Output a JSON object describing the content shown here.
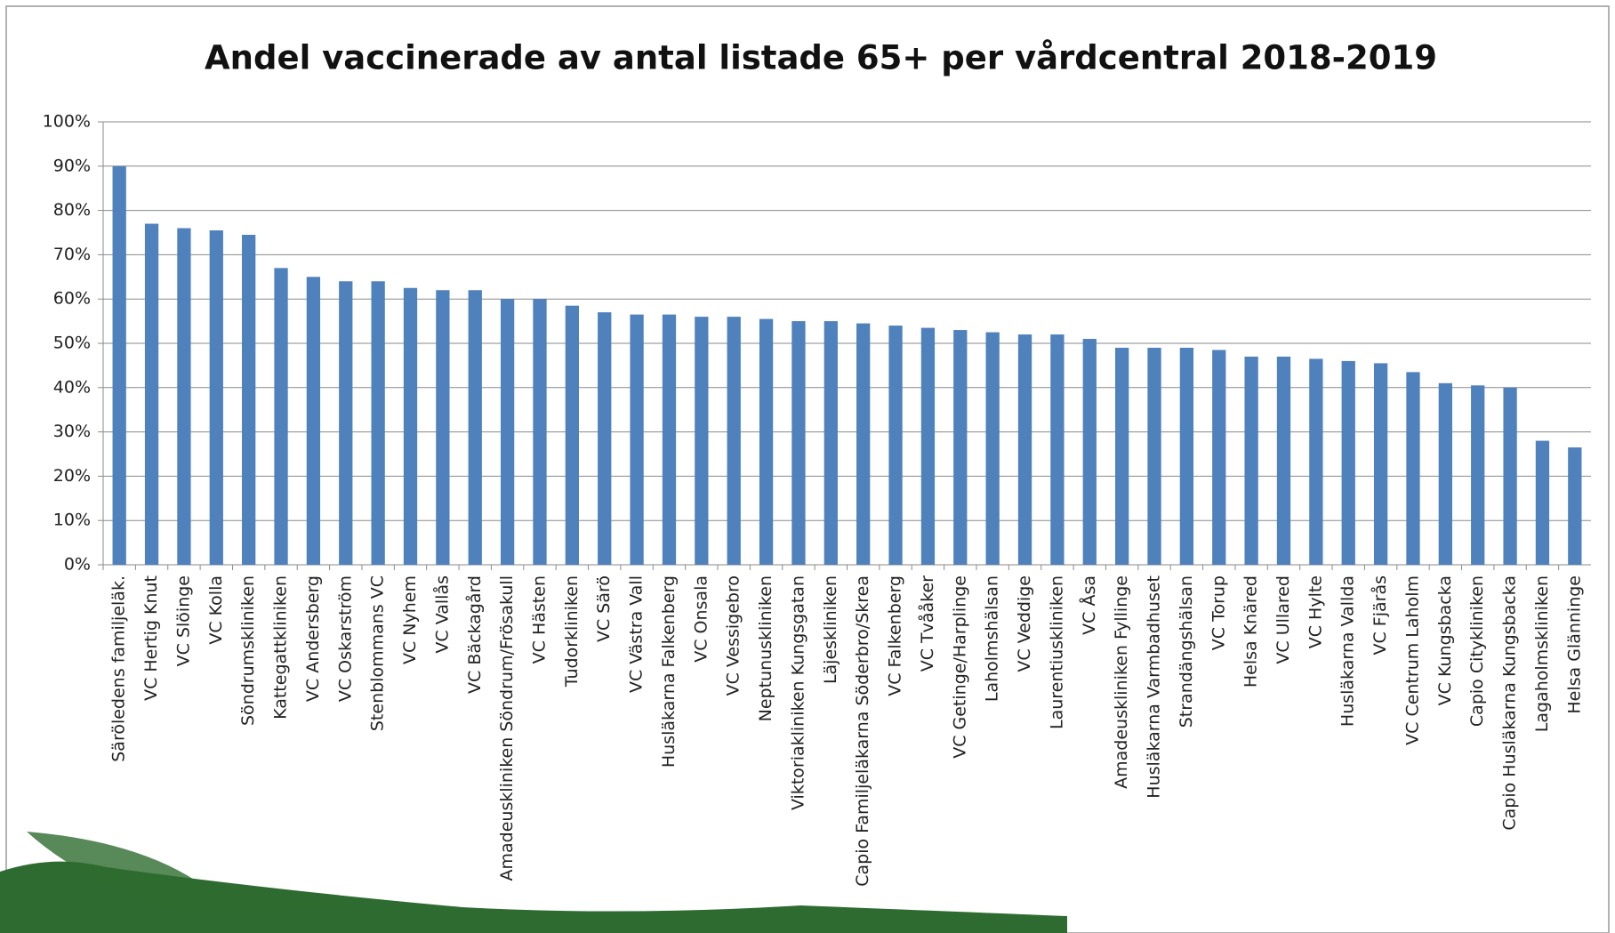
{
  "chart_data": {
    "type": "bar",
    "title": "Andel vaccinerade av antal listade 65+ per vårdcentral 2018-2019",
    "categories": [
      "Säröledens familjeläk.",
      "VC Hertig Knut",
      "VC Slöinge",
      "VC Kolla",
      "Söndrumskliniken",
      "Kattegattkliniken",
      "VC Andersberg",
      "VC Oskarström",
      "Stenblommans VC",
      "VC Nyhem",
      "VC Vallås",
      "VC Bäckagård",
      "Amadeuskliniken Söndrum/Frösakull",
      "VC Hästen",
      "Tudorkliniken",
      "VC Särö",
      "VC Västra Vall",
      "Husläkarna Falkenberg",
      "VC Onsala",
      "VC Vessigebro",
      "Neptunuskliniken",
      "Viktoriakliniken Kungsgatan",
      "Läjeskliniken",
      "Capio Familjeläkarna Söderbro/Skrea",
      "VC Falkenberg",
      "VC Tvååker",
      "VC Getinge/Harplinge",
      "Laholmshälsan",
      "VC Veddige",
      "Laurentiuskliniken",
      "VC Åsa",
      "Amadeuskliniken Fyllinge",
      "Husläkarna Varmbadhuset",
      "Strandängshälsan",
      "VC Torup",
      "Helsa Knäred",
      "VC Ullared",
      "VC Hylte",
      "Husläkarna Vallda",
      "VC Fjärås",
      "VC Centrum Laholm",
      "VC Kungsbacka",
      "Capio Citykliniken",
      "Capio Husläkarna Kungsbacka",
      "Lagaholmskliniken",
      "Helsa Glänninge"
    ],
    "values": [
      90,
      77,
      76,
      75.5,
      74.5,
      67,
      65,
      64,
      64,
      62.5,
      62,
      62,
      60,
      60,
      58.5,
      57,
      56.5,
      56.5,
      56,
      56,
      55.5,
      55,
      55,
      54.5,
      54,
      53.5,
      53,
      52.5,
      52,
      52,
      51,
      49,
      49,
      49,
      48.5,
      47,
      47,
      46.5,
      46,
      45.5,
      43.5,
      41,
      40.5,
      40,
      28,
      26.5
    ],
    "color": "#4f81bd",
    "ylim": [
      0,
      100
    ],
    "yticks": [
      {
        "value": 0,
        "label": "0%"
      },
      {
        "value": 10,
        "label": "10%"
      },
      {
        "value": 20,
        "label": "20%"
      },
      {
        "value": 30,
        "label": "30%"
      },
      {
        "value": 40,
        "label": "40%"
      },
      {
        "value": 50,
        "label": "50%"
      },
      {
        "value": 60,
        "label": "60%"
      },
      {
        "value": 70,
        "label": "70%"
      },
      {
        "value": 80,
        "label": "80%"
      },
      {
        "value": 90,
        "label": "90%"
      },
      {
        "value": 100,
        "label": "100%"
      }
    ],
    "grid": true
  }
}
